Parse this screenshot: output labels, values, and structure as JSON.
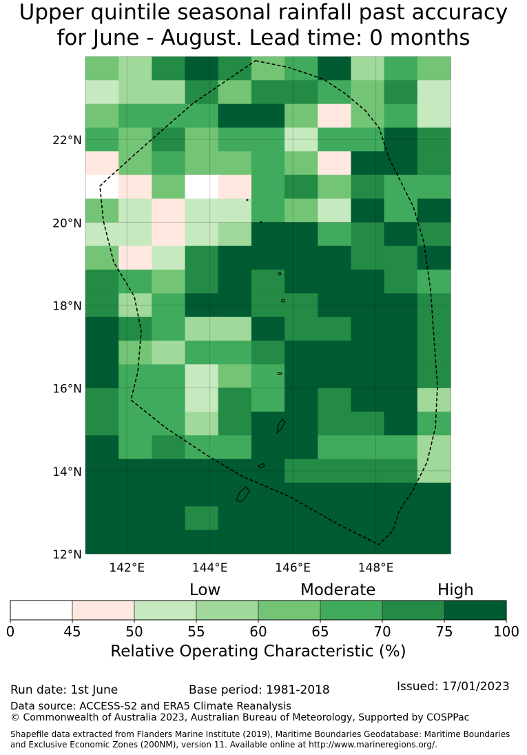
{
  "title": {
    "line1": "Upper quintile seasonal rainfall past accuracy",
    "line2": "for June - August. Lead time: 0 months"
  },
  "map": {
    "lon_range": [
      141,
      149.8
    ],
    "lat_range": [
      12,
      24
    ],
    "cell_size_deg": 0.833,
    "lat_ticks": [
      "22°N",
      "20°N",
      "18°N",
      "16°N",
      "14°N",
      "12°N"
    ],
    "lon_ticks": [
      "142°E",
      "144°E",
      "146°E",
      "148°E"
    ],
    "grid_classes": [
      [
        4,
        3,
        6,
        7,
        6,
        4,
        5,
        7,
        3,
        5,
        4
      ],
      [
        2,
        3,
        3,
        6,
        4,
        6,
        6,
        5,
        4,
        6,
        2
      ],
      [
        4,
        5,
        5,
        5,
        7,
        7,
        4,
        1,
        4,
        5,
        2
      ],
      [
        5,
        4,
        6,
        4,
        5,
        5,
        2,
        5,
        5,
        7,
        6
      ],
      [
        1,
        4,
        5,
        4,
        4,
        5,
        4,
        1,
        7,
        7,
        6
      ],
      [
        0,
        1,
        4,
        0,
        1,
        5,
        6,
        4,
        6,
        5,
        5
      ],
      [
        4,
        2,
        -1,
        2,
        2,
        5,
        4,
        2,
        7,
        5,
        7
      ],
      [
        2,
        2,
        -1,
        2,
        3,
        7,
        7,
        5,
        6,
        7,
        6
      ],
      [
        4,
        -1,
        2,
        6,
        7,
        7,
        7,
        7,
        6,
        6,
        7
      ],
      [
        6,
        5,
        4,
        6,
        7,
        6,
        7,
        7,
        7,
        6,
        5
      ],
      [
        6,
        3,
        5,
        7,
        7,
        6,
        6,
        7,
        7,
        7,
        6
      ],
      [
        7,
        6,
        5,
        3,
        3,
        7,
        6,
        6,
        7,
        7,
        6
      ],
      [
        7,
        4,
        3,
        5,
        5,
        6,
        7,
        7,
        7,
        7,
        6
      ],
      [
        7,
        5,
        5,
        2,
        4,
        5,
        7,
        7,
        7,
        7,
        6
      ],
      [
        6,
        5,
        5,
        2,
        6,
        5,
        7,
        6,
        7,
        7,
        3
      ],
      [
        6,
        5,
        5,
        3,
        6,
        7,
        7,
        6,
        6,
        7,
        5
      ],
      [
        7,
        5,
        6,
        5,
        5,
        7,
        7,
        5,
        5,
        5,
        3
      ],
      [
        7,
        7,
        7,
        7,
        7,
        7,
        6,
        6,
        6,
        6,
        3
      ],
      [
        7,
        7,
        7,
        7,
        7,
        7,
        7,
        7,
        7,
        7,
        7
      ],
      [
        7,
        7,
        7,
        6,
        7,
        7,
        7,
        7,
        7,
        7,
        7
      ],
      [
        7,
        7,
        7,
        7,
        7,
        7,
        7,
        7,
        7,
        7,
        7
      ]
    ]
  },
  "colorbar": {
    "tiers": [
      "Low",
      "Moderate",
      "High"
    ],
    "ticks": [
      "0",
      "45",
      "50",
      "55",
      "60",
      "65",
      "70",
      "75",
      "100"
    ],
    "colors": [
      "#ffffff",
      "#fee8e0",
      "#c7e9c0",
      "#a1d99b",
      "#74c476",
      "#41ab5d",
      "#238b45",
      "#005a32"
    ],
    "label": "Relative Operating Characteristic (%)"
  },
  "footer": {
    "run_date": "Run date: 1st June",
    "base_period": "Base period: 1981-2018",
    "issued": "Issued: 17/01/2023",
    "data_source": "Data source: ACCESS-S2 and ERA5 Climate Reanalysis",
    "copyright": "© Commonwealth of Australia 2023, Australian Bureau of Meteorology, Supported by COSPPac",
    "shapefile": "Shapefile data extracted from Flanders Marine Institute (2019), Maritime Boundaries Geodatabase: Maritime Boundaries and Exclusive Economic Zones (200NM), version 11. Available online at http://www.marineregions.org/."
  }
}
